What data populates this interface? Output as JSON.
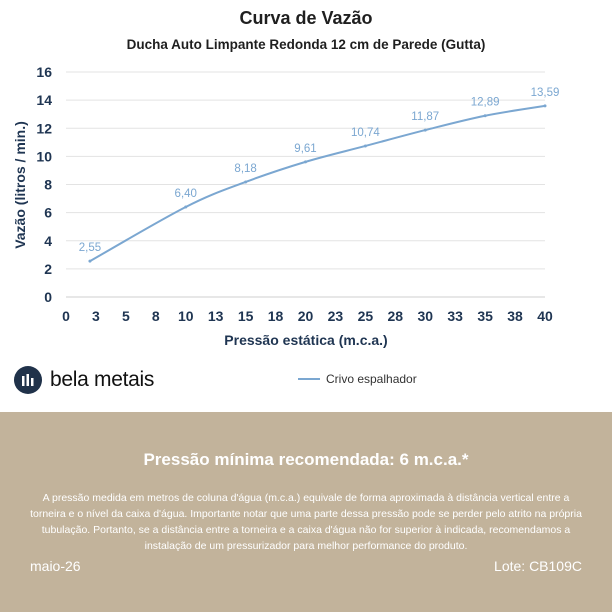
{
  "chart_data": {
    "type": "line",
    "title": "Curva de Vazão",
    "subtitle": "Ducha Auto Limpante Redonda 12 cm de Parede (Gutta)",
    "xlabel": "Pressão estática (m.c.a.)",
    "ylabel": "Vazão (litros / min.)",
    "x_ticks": [
      "0",
      "3",
      "5",
      "8",
      "10",
      "13",
      "15",
      "18",
      "20",
      "23",
      "25",
      "28",
      "30",
      "33",
      "35",
      "38",
      "40"
    ],
    "y_ticks": [
      "0",
      "2",
      "4",
      "6",
      "8",
      "10",
      "12",
      "14",
      "16"
    ],
    "xlim": [
      0,
      40
    ],
    "ylim": [
      0,
      16
    ],
    "grid": true,
    "legend_position": "bottom",
    "series": [
      {
        "name": "Crivo espalhador",
        "color": "#7ba7d1",
        "x": [
          2,
          10,
          15,
          20,
          25,
          30,
          35,
          40
        ],
        "y": [
          2.55,
          6.4,
          8.18,
          9.61,
          10.74,
          11.87,
          12.89,
          13.59
        ],
        "labels": [
          "2,55",
          "6,40",
          "8,18",
          "9,61",
          "10,74",
          "11,87",
          "12,89",
          "13,59"
        ]
      }
    ]
  },
  "brand": {
    "name": "bela metais",
    "logo_icon": "bars-chart-icon"
  },
  "footer": {
    "headline": "Pressão mínima recomendada: 6 m.c.a.*",
    "note": "A pressão medida em metros de coluna d'água (m.c.a.) equivale de forma aproximada à distância vertical entre a torneira e o nível da caixa d'água. Importante notar que uma parte dessa pressão pode se perder pelo atrito na própria tubulação. Portanto, se a distância entre a torneira e a caixa d'água não for superior à indicada, recomendamos a instalação de um pressurizador para melhor performance do produto.",
    "date": "maio-26",
    "lot": "Lote: CB109C",
    "background_color": "#c2b39b"
  }
}
